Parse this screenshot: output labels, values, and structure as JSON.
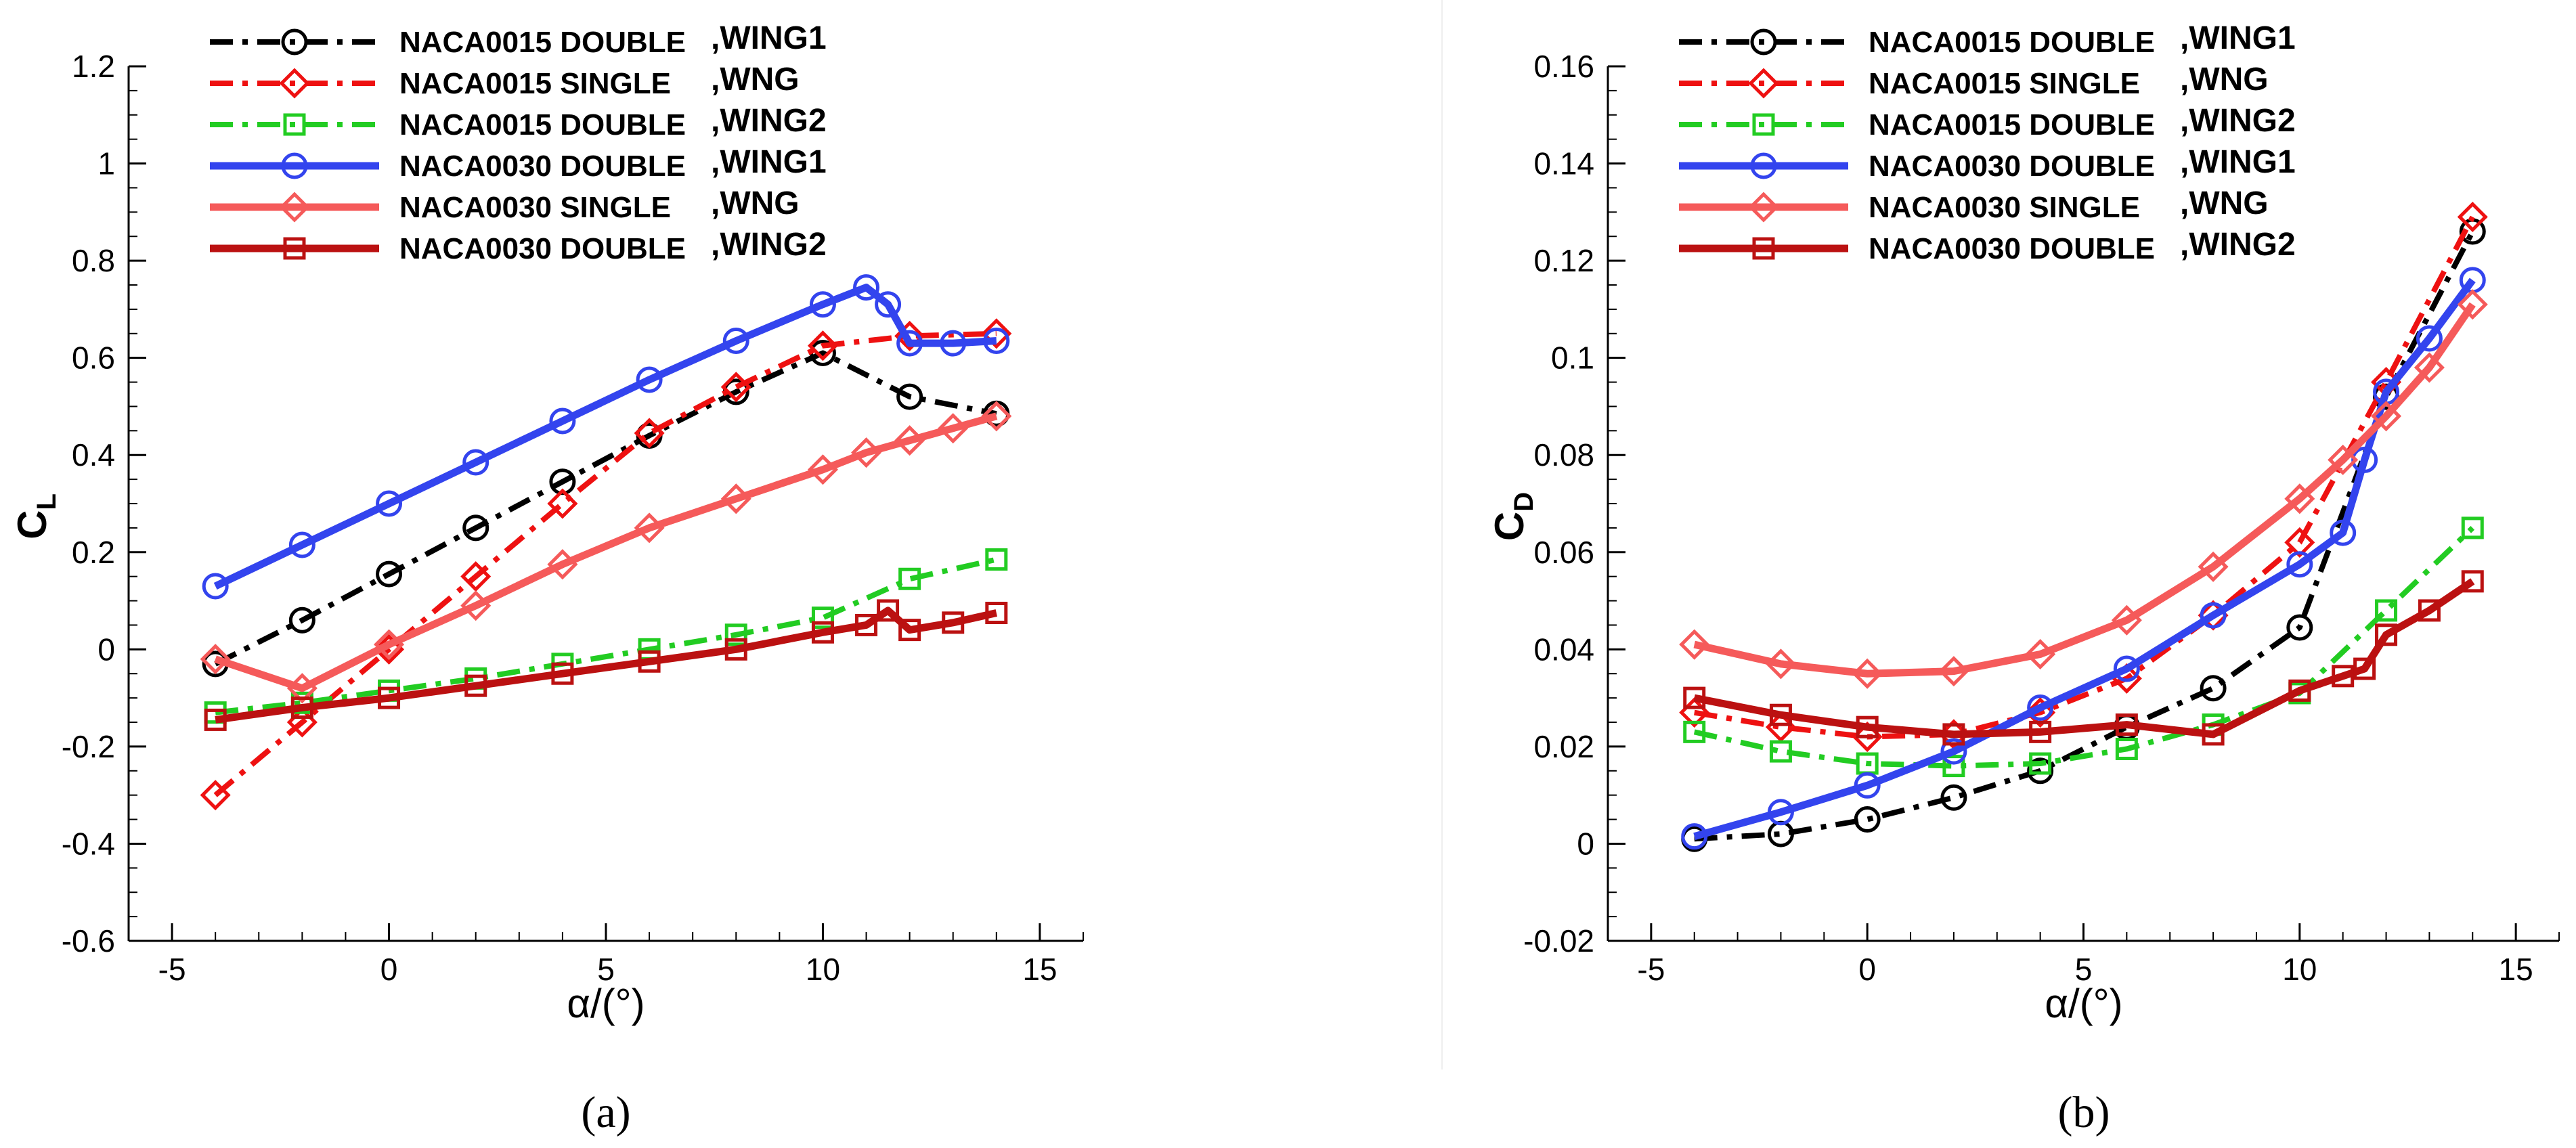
{
  "colors": {
    "naca0015_double_wing1": "#000000",
    "naca0015_single_wng": "#ee1111",
    "naca0015_double_wing2": "#22cc22",
    "naca0030_double_wing1": "#3344ee",
    "naca0030_single_wng": "#f55a5a",
    "naca0030_double_wing2": "#bb1111"
  },
  "chart_data": [
    {
      "type": "line",
      "panel_label": "(a)",
      "xlabel": "α/(°)",
      "ylabel": "C",
      "ylabel_sub": "L",
      "xlim": [
        -6,
        16
      ],
      "ylim": [
        -0.6,
        1.2
      ],
      "xticks": [
        -5,
        0,
        5,
        10,
        15
      ],
      "xtick_labels": [
        "-5",
        "0",
        "5",
        "10",
        "15"
      ],
      "yticks": [
        -0.6,
        -0.4,
        -0.2,
        0,
        0.2,
        0.4,
        0.6,
        0.8,
        1,
        1.2
      ],
      "ytick_labels": [
        "-0.6",
        "-0.4",
        "-0.2",
        "0",
        "0.2",
        "0.4",
        "0.6",
        "0.8",
        "1",
        "1.2"
      ],
      "legend_position": "top-left",
      "series": [
        {
          "name": "NACA0015 DOUBLE",
          "suffix": ",WING1",
          "style": "dashdot",
          "marker": "circle",
          "x": [
            -4,
            -2,
            0,
            2,
            4,
            6,
            8,
            10,
            12,
            14
          ],
          "y": [
            -0.03,
            0.06,
            0.155,
            0.25,
            0.345,
            0.44,
            0.53,
            0.61,
            0.52,
            0.485
          ]
        },
        {
          "name": "NACA0015 SINGLE  ",
          "suffix": ",WNG",
          "style": "dashdot",
          "marker": "diamond",
          "x": [
            -4,
            -2,
            0,
            2,
            4,
            6,
            8,
            10,
            12,
            14
          ],
          "y": [
            -0.3,
            -0.15,
            0.0,
            0.15,
            0.3,
            0.445,
            0.54,
            0.625,
            0.645,
            0.65
          ]
        },
        {
          "name": "NACA0015 DOUBLE",
          "suffix": ",WING2",
          "style": "dashdot",
          "marker": "square",
          "x": [
            -4,
            -2,
            0,
            2,
            4,
            6,
            8,
            10,
            12,
            14
          ],
          "y": [
            -0.13,
            -0.11,
            -0.085,
            -0.06,
            -0.03,
            0.0,
            0.03,
            0.065,
            0.145,
            0.185
          ]
        },
        {
          "name": "NACA0030 DOUBLE",
          "suffix": ",WING1",
          "style": "solid",
          "marker": "circle",
          "x": [
            -4,
            -2,
            0,
            2,
            4,
            6,
            8,
            10,
            11,
            11.5,
            12,
            13,
            14
          ],
          "y": [
            0.13,
            0.215,
            0.3,
            0.385,
            0.47,
            0.555,
            0.635,
            0.71,
            0.745,
            0.71,
            0.63,
            0.63,
            0.635
          ]
        },
        {
          "name": "NACA0030 SINGLE  ",
          "suffix": ",WNG",
          "style": "solid",
          "marker": "diamond",
          "x": [
            -4,
            -2,
            0,
            2,
            4,
            6,
            8,
            10,
            11,
            12,
            13,
            14
          ],
          "y": [
            -0.02,
            -0.08,
            0.01,
            0.09,
            0.175,
            0.25,
            0.31,
            0.37,
            0.405,
            0.43,
            0.455,
            0.48
          ]
        },
        {
          "name": "NACA0030 DOUBLE",
          "suffix": ",WING2",
          "style": "solid",
          "marker": "square",
          "x": [
            -4,
            -2,
            0,
            2,
            4,
            6,
            8,
            10,
            11,
            11.5,
            12,
            13,
            14
          ],
          "y": [
            -0.145,
            -0.12,
            -0.1,
            -0.075,
            -0.05,
            -0.025,
            0.0,
            0.035,
            0.05,
            0.08,
            0.04,
            0.055,
            0.075
          ]
        }
      ]
    },
    {
      "type": "line",
      "panel_label": "(b)",
      "xlabel": "α/(°)",
      "ylabel": "C",
      "ylabel_sub": "D",
      "xlim": [
        -6,
        16
      ],
      "ylim": [
        -0.02,
        0.16
      ],
      "xticks": [
        -5,
        0,
        5,
        10,
        15
      ],
      "xtick_labels": [
        "-5",
        "0",
        "5",
        "10",
        "15"
      ],
      "yticks": [
        -0.02,
        0,
        0.02,
        0.04,
        0.06,
        0.08,
        0.1,
        0.12,
        0.14,
        0.16
      ],
      "ytick_labels": [
        "-0.02",
        "0",
        "0.02",
        "0.04",
        "0.06",
        "0.08",
        "0.1",
        "0.12",
        "0.14",
        "0.16"
      ],
      "legend_position": "top-left",
      "series": [
        {
          "name": "NACA0015 DOUBLE",
          "suffix": ",WING1",
          "style": "dashdot",
          "marker": "circle",
          "x": [
            -4,
            -2,
            0,
            2,
            4,
            6,
            8,
            10,
            12,
            14
          ],
          "y": [
            0.001,
            0.002,
            0.005,
            0.0095,
            0.015,
            0.024,
            0.032,
            0.0445,
            0.092,
            0.126
          ]
        },
        {
          "name": "NACA0015 SINGLE  ",
          "suffix": ",WNG",
          "style": "dashdot",
          "marker": "diamond",
          "x": [
            -4,
            -2,
            0,
            2,
            4,
            6,
            8,
            10,
            12,
            14
          ],
          "y": [
            0.027,
            0.024,
            0.022,
            0.0225,
            0.027,
            0.034,
            0.047,
            0.062,
            0.095,
            0.129
          ]
        },
        {
          "name": "NACA0015 DOUBLE",
          "suffix": ",WING2",
          "style": "dashdot",
          "marker": "square",
          "x": [
            -4,
            -2,
            0,
            2,
            4,
            6,
            8,
            10,
            12,
            14
          ],
          "y": [
            0.023,
            0.019,
            0.0165,
            0.016,
            0.0165,
            0.0195,
            0.0245,
            0.031,
            0.048,
            0.065
          ]
        },
        {
          "name": "NACA0030 DOUBLE",
          "suffix": ",WING1",
          "style": "solid",
          "marker": "circle",
          "x": [
            -4,
            -2,
            0,
            2,
            4,
            6,
            8,
            10,
            11,
            11.5,
            12,
            13,
            14
          ],
          "y": [
            0.0015,
            0.0065,
            0.012,
            0.019,
            0.028,
            0.036,
            0.047,
            0.0575,
            0.064,
            0.079,
            0.093,
            0.104,
            0.116
          ]
        },
        {
          "name": "NACA0030 SINGLE  ",
          "suffix": ",WNG",
          "style": "solid",
          "marker": "diamond",
          "x": [
            -4,
            -2,
            0,
            2,
            4,
            6,
            8,
            10,
            11,
            12,
            13,
            14
          ],
          "y": [
            0.041,
            0.037,
            0.035,
            0.0355,
            0.039,
            0.046,
            0.057,
            0.071,
            0.079,
            0.088,
            0.098,
            0.111
          ]
        },
        {
          "name": "NACA0030 DOUBLE",
          "suffix": ",WING2",
          "style": "solid",
          "marker": "square",
          "x": [
            -4,
            -2,
            0,
            2,
            4,
            6,
            8,
            10,
            11,
            11.5,
            12,
            13,
            14
          ],
          "y": [
            0.03,
            0.0265,
            0.024,
            0.0225,
            0.023,
            0.0245,
            0.0225,
            0.0315,
            0.0345,
            0.036,
            0.043,
            0.048,
            0.054
          ]
        }
      ]
    }
  ]
}
